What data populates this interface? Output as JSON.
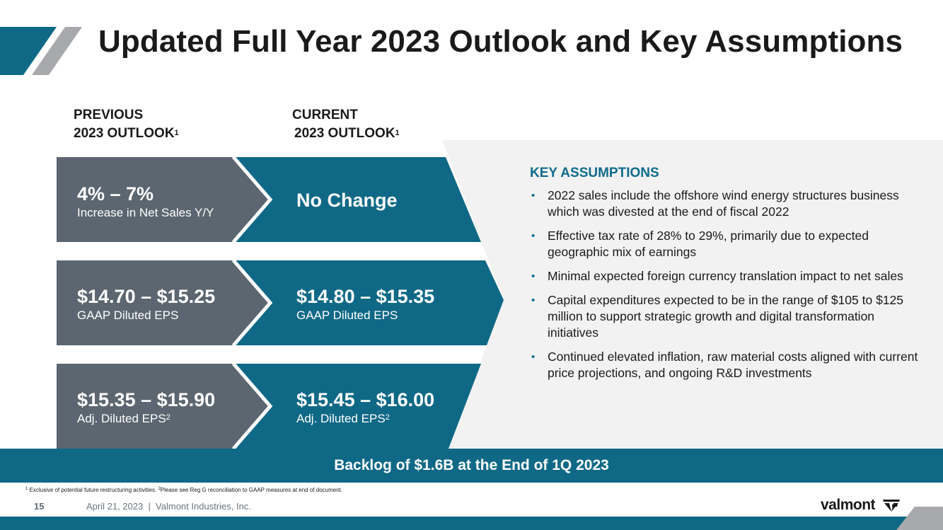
{
  "title": "Updated Full Year 2023 Outlook and Key Assumptions",
  "columns": {
    "previous": {
      "line1": "PREVIOUS",
      "line2": "2023 OUTLOOK",
      "sup": "1"
    },
    "current": {
      "line1": "CURRENT",
      "line2": "2023 OUTLOOK",
      "sup": "1"
    }
  },
  "rows": [
    {
      "previous": {
        "value": "4% – 7%",
        "label": "Increase in Net Sales Y/Y",
        "sup": ""
      },
      "current": {
        "value": "No Change",
        "label": "",
        "sup": ""
      }
    },
    {
      "previous": {
        "value": "$14.70 – $15.25",
        "label": "GAAP Diluted EPS",
        "sup": ""
      },
      "current": {
        "value": "$14.80 – $15.35",
        "label": "GAAP Diluted EPS",
        "sup": ""
      }
    },
    {
      "previous": {
        "value": "$15.35 – $15.90",
        "label": "Adj. Diluted EPS",
        "sup": "2"
      },
      "current": {
        "value": "$15.45 – $16.00",
        "label": "Adj. Diluted EPS",
        "sup": "2"
      }
    }
  ],
  "key_assumptions": {
    "title": "KEY ASSUMPTIONS",
    "items": [
      "2022 sales include the offshore wind energy structures business which was divested at the end of fiscal 2022",
      "Effective tax rate of 28% to 29%, primarily due to expected geographic mix of earnings",
      "Minimal expected foreign currency translation impact to net sales",
      "Capital expenditures expected to be in the range of $105 to $125 million to support strategic growth and digital transformation initiatives",
      "Continued elevated inflation, raw material costs aligned with current price projections, and ongoing R&D investments"
    ],
    "bullet": "•"
  },
  "backlog": "Backlog of $1.6B at the End of 1Q 2023",
  "footnote": {
    "sup1": "1",
    "text1": " Exclusive of potential future restructuring activities. ",
    "sup2": "2",
    "text2": "Please see Reg G reconciliation to GAAP measures at end of document."
  },
  "footer": {
    "page_number": "15",
    "text": "April 21, 2023  |  Valmont Industries, Inc.",
    "brand": "valmont"
  },
  "colors": {
    "blue": "#0f6986",
    "gray": "#5b6670",
    "light_bg": "#f2f2f2",
    "accent_text": "#0d6b8c"
  }
}
